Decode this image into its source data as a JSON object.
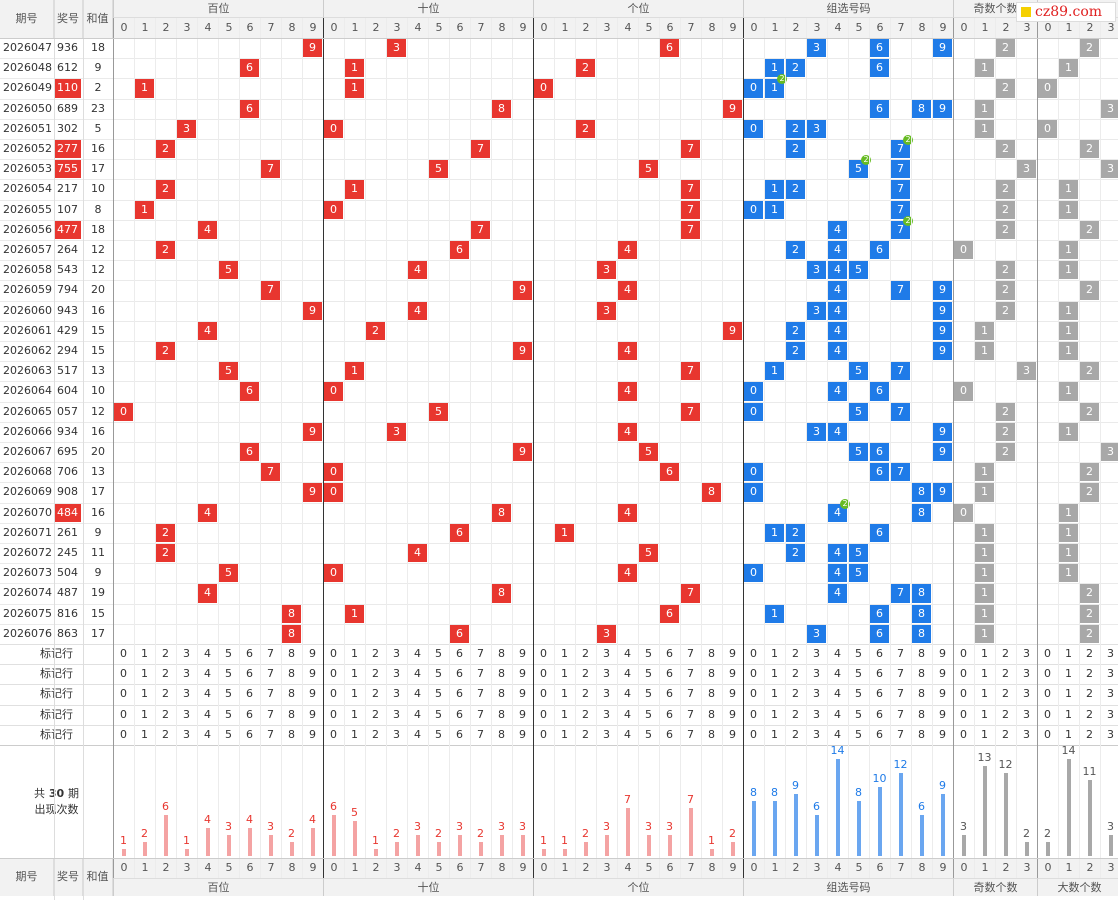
{
  "header": {
    "col_period": "期号",
    "col_number": "奖号",
    "col_sum": "和值",
    "groups": [
      "百位",
      "十位",
      "个位",
      "组选号码",
      "奇数个数",
      "大数个数"
    ]
  },
  "logo": {
    "text": "cz89.com"
  },
  "colors": {
    "red": "#e8362f",
    "blue": "#1f7be8",
    "gray": "#a8a8a8",
    "pink_bar": "#f4a3a3",
    "blue_bar": "#6aa6f0",
    "badge": "#66bb22"
  },
  "rows": [
    {
      "period": "2026047",
      "number": "936",
      "sum": "18",
      "highlight": false
    },
    {
      "period": "2026048",
      "number": "612",
      "sum": "9",
      "highlight": false
    },
    {
      "period": "2026049",
      "number": "110",
      "sum": "2",
      "highlight": true
    },
    {
      "period": "2026050",
      "number": "689",
      "sum": "23",
      "highlight": false
    },
    {
      "period": "2026051",
      "number": "302",
      "sum": "5",
      "highlight": false
    },
    {
      "period": "2026052",
      "number": "277",
      "sum": "16",
      "highlight": true
    },
    {
      "period": "2026053",
      "number": "755",
      "sum": "17",
      "highlight": true
    },
    {
      "period": "2026054",
      "number": "217",
      "sum": "10",
      "highlight": false
    },
    {
      "period": "2026055",
      "number": "107",
      "sum": "8",
      "highlight": false
    },
    {
      "period": "2026056",
      "number": "477",
      "sum": "18",
      "highlight": true
    },
    {
      "period": "2026057",
      "number": "264",
      "sum": "12",
      "highlight": false
    },
    {
      "period": "2026058",
      "number": "543",
      "sum": "12",
      "highlight": false
    },
    {
      "period": "2026059",
      "number": "794",
      "sum": "20",
      "highlight": false
    },
    {
      "period": "2026060",
      "number": "943",
      "sum": "16",
      "highlight": false
    },
    {
      "period": "2026061",
      "number": "429",
      "sum": "15",
      "highlight": false
    },
    {
      "period": "2026062",
      "number": "294",
      "sum": "15",
      "highlight": false
    },
    {
      "period": "2026063",
      "number": "517",
      "sum": "13",
      "highlight": false
    },
    {
      "period": "2026064",
      "number": "604",
      "sum": "10",
      "highlight": false
    },
    {
      "period": "2026065",
      "number": "057",
      "sum": "12",
      "highlight": false
    },
    {
      "period": "2026066",
      "number": "934",
      "sum": "16",
      "highlight": false
    },
    {
      "period": "2026067",
      "number": "695",
      "sum": "20",
      "highlight": false
    },
    {
      "period": "2026068",
      "number": "706",
      "sum": "13",
      "highlight": false
    },
    {
      "period": "2026069",
      "number": "908",
      "sum": "17",
      "highlight": false
    },
    {
      "period": "2026070",
      "number": "484",
      "sum": "16",
      "highlight": true
    },
    {
      "period": "2026071",
      "number": "261",
      "sum": "9",
      "highlight": false
    },
    {
      "period": "2026072",
      "number": "245",
      "sum": "11",
      "highlight": false
    },
    {
      "period": "2026073",
      "number": "504",
      "sum": "9",
      "highlight": false
    },
    {
      "period": "2026074",
      "number": "487",
      "sum": "19",
      "highlight": false
    },
    {
      "period": "2026075",
      "number": "816",
      "sum": "15",
      "highlight": false
    },
    {
      "period": "2026076",
      "number": "863",
      "sum": "17",
      "highlight": false
    }
  ],
  "marker_rows": {
    "label": "标记行",
    "count": 5
  },
  "stats": {
    "title_prefix": "共",
    "title_count": "30",
    "title_suffix": "期",
    "subtitle": "出现次数",
    "hundreds": [
      1,
      2,
      6,
      1,
      4,
      3,
      4,
      3,
      2,
      4
    ],
    "tens": [
      6,
      5,
      1,
      2,
      3,
      2,
      3,
      2,
      3,
      3
    ],
    "units": [
      1,
      1,
      2,
      3,
      7,
      3,
      3,
      7,
      1,
      2
    ],
    "group": [
      8,
      8,
      9,
      6,
      14,
      8,
      10,
      12,
      6,
      9
    ],
    "odd": [
      3,
      13,
      12,
      2
    ],
    "big": [
      2,
      14,
      11,
      3
    ]
  }
}
